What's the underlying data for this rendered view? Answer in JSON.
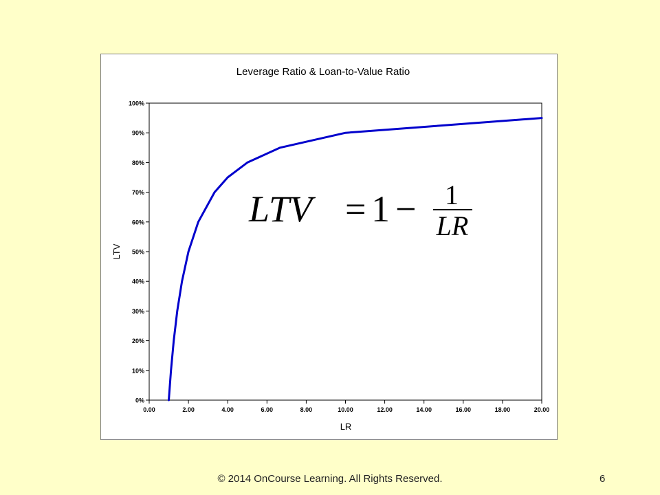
{
  "slide": {
    "copyright": "© 2014 OnCourse Learning. All Rights Reserved.",
    "page_number": "6"
  },
  "formula": {
    "lhs": "LTV",
    "equals": "=",
    "one": "1",
    "minus": "−",
    "numerator": "1",
    "denominator": "LR"
  },
  "colors": {
    "background": "#ffffc9",
    "line": "#0000cc"
  },
  "chart_data": {
    "type": "line",
    "title": "Leverage Ratio & Loan-to-Value Ratio",
    "xlabel": "LR",
    "ylabel": "LTV",
    "xlim": [
      0,
      20
    ],
    "ylim": [
      0,
      1
    ],
    "grid": false,
    "legend": "none",
    "x_tick_labels": [
      "0.00",
      "2.00",
      "4.00",
      "6.00",
      "8.00",
      "10.00",
      "12.00",
      "14.00",
      "16.00",
      "18.00",
      "20.00"
    ],
    "y_tick_labels": [
      "0%",
      "10%",
      "20%",
      "30%",
      "40%",
      "50%",
      "60%",
      "70%",
      "80%",
      "90%",
      "100%"
    ],
    "series": [
      {
        "x": [
          1.0,
          1.11,
          1.25,
          1.43,
          1.67,
          2.0,
          2.5,
          3.33,
          4.0,
          5.0,
          6.67,
          10.0,
          20.0
        ],
        "y": [
          0.0,
          0.1,
          0.2,
          0.3,
          0.4,
          0.5,
          0.6,
          0.7,
          0.75,
          0.8,
          0.85,
          0.9,
          0.95
        ]
      }
    ]
  }
}
